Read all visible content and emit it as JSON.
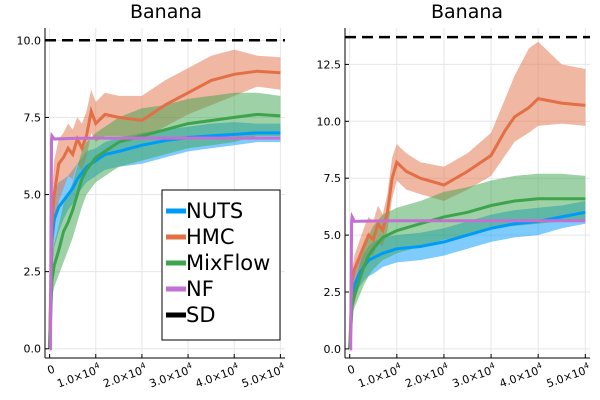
{
  "chart_data": [
    {
      "type": "line",
      "title": "Banana",
      "xlabel": "",
      "ylabel": "",
      "xlim": [
        -1000,
        51000
      ],
      "ylim": [
        -0.3,
        10.4
      ],
      "x_ticks": [
        0,
        10000,
        20000,
        30000,
        40000,
        50000
      ],
      "x_tick_labels": [
        {
          "main": "0",
          "exp": ""
        },
        {
          "main": "1.0×10",
          "exp": "4"
        },
        {
          "main": "2.0×10",
          "exp": "4"
        },
        {
          "main": "3.0×10",
          "exp": "4"
        },
        {
          "main": "4.0×10",
          "exp": "4"
        },
        {
          "main": "5.0×10",
          "exp": "4"
        }
      ],
      "y_ticks": [
        0,
        2.5,
        5,
        7.5,
        10
      ],
      "y_tick_labels": [
        "0.0",
        "2.5",
        "5.0",
        "7.5",
        "10.0"
      ],
      "grid": true,
      "legend_position": "bottom-right",
      "series": [
        {
          "name": "NUTS",
          "color": "#009af9",
          "style": "solid",
          "x": [
            0,
            500,
            1000,
            2000,
            3000,
            4000,
            5000,
            6000,
            7000,
            8000,
            10000,
            12000,
            15000,
            20000,
            25000,
            30000,
            35000,
            40000,
            45000,
            50000
          ],
          "mean": [
            0,
            3.5,
            4.2,
            4.6,
            4.8,
            5.0,
            5.2,
            5.5,
            5.7,
            5.9,
            6.1,
            6.3,
            6.4,
            6.6,
            6.75,
            6.85,
            6.9,
            6.95,
            7.0,
            7.0
          ],
          "lower": [
            0,
            2.6,
            3.3,
            3.8,
            4.2,
            4.5,
            4.7,
            5.0,
            5.2,
            5.4,
            5.6,
            5.8,
            5.9,
            6.0,
            6.2,
            6.4,
            6.5,
            6.6,
            6.7,
            6.7
          ],
          "upper": [
            0,
            4.4,
            5.1,
            5.4,
            5.5,
            5.6,
            5.8,
            6.0,
            6.2,
            6.4,
            6.5,
            6.7,
            6.85,
            7.0,
            7.1,
            7.2,
            7.3,
            7.35,
            7.3,
            7.3
          ]
        },
        {
          "name": "HMC",
          "color": "#e26f46",
          "style": "solid",
          "x": [
            0,
            500,
            1000,
            2000,
            3000,
            4000,
            5000,
            6000,
            7000,
            8000,
            9000,
            10000,
            12000,
            15000,
            20000,
            25000,
            30000,
            35000,
            40000,
            45000,
            50000
          ],
          "mean": [
            0,
            4.0,
            5.0,
            6.0,
            6.2,
            6.5,
            6.3,
            6.8,
            6.5,
            6.9,
            7.7,
            7.3,
            7.6,
            7.5,
            7.4,
            7.9,
            8.3,
            8.7,
            8.9,
            9.0,
            8.95
          ],
          "lower": [
            0,
            3.0,
            3.8,
            4.8,
            5.2,
            5.6,
            5.5,
            6.0,
            5.8,
            6.2,
            7.0,
            6.7,
            6.9,
            6.9,
            6.8,
            7.2,
            7.6,
            7.9,
            8.2,
            8.5,
            8.4
          ],
          "upper": [
            0,
            5.0,
            6.1,
            6.8,
            7.0,
            7.3,
            7.1,
            7.5,
            7.3,
            7.7,
            8.4,
            8.0,
            8.3,
            8.2,
            8.2,
            8.7,
            9.1,
            9.5,
            9.7,
            9.5,
            9.45
          ]
        },
        {
          "name": "MixFlow",
          "color": "#3da44d",
          "style": "solid",
          "x": [
            0,
            500,
            1000,
            2000,
            3000,
            4000,
            5000,
            6000,
            7000,
            8000,
            10000,
            12000,
            15000,
            20000,
            25000,
            30000,
            35000,
            40000,
            45000,
            50000
          ],
          "mean": [
            0,
            2.2,
            2.7,
            3.2,
            3.8,
            4.1,
            4.5,
            5.0,
            5.5,
            5.8,
            6.2,
            6.4,
            6.7,
            6.9,
            7.1,
            7.3,
            7.4,
            7.5,
            7.6,
            7.55
          ],
          "lower": [
            0,
            1.6,
            2.0,
            2.4,
            2.8,
            3.2,
            3.6,
            4.1,
            4.6,
            5.0,
            5.4,
            5.6,
            5.9,
            6.1,
            6.3,
            6.5,
            6.6,
            6.7,
            6.9,
            6.9
          ],
          "upper": [
            0,
            2.8,
            3.4,
            4.0,
            4.7,
            5.0,
            5.4,
            5.9,
            6.4,
            6.7,
            7.0,
            7.2,
            7.5,
            7.8,
            7.9,
            8.1,
            8.2,
            8.3,
            8.3,
            8.2
          ]
        },
        {
          "name": "NF",
          "color": "#c271d2",
          "style": "solid",
          "x": [
            0,
            200,
            400,
            500,
            1000,
            5000,
            10000,
            20000,
            30000,
            40000,
            50000
          ],
          "mean": [
            0,
            0,
            6.75,
            6.9,
            6.8,
            6.82,
            6.83,
            6.83,
            6.83,
            6.83,
            6.83
          ],
          "lower": [
            0,
            0,
            6.7,
            6.8,
            6.75,
            6.78,
            6.79,
            6.79,
            6.79,
            6.79,
            6.79
          ],
          "upper": [
            0,
            0,
            6.8,
            7.0,
            6.85,
            6.86,
            6.87,
            6.87,
            6.87,
            6.87,
            6.87
          ]
        },
        {
          "name": "SD",
          "color": "#000000",
          "style": "dashed",
          "x": [
            -1000,
            51000
          ],
          "mean": [
            10,
            10
          ]
        }
      ]
    },
    {
      "type": "line",
      "title": "Banana",
      "xlabel": "",
      "ylabel": "",
      "xlim": [
        -1000,
        51000
      ],
      "ylim": [
        -0.4,
        14.1
      ],
      "x_ticks": [
        0,
        10000,
        20000,
        30000,
        40000,
        50000
      ],
      "x_tick_labels": [
        {
          "main": "0",
          "exp": ""
        },
        {
          "main": "1.0×10",
          "exp": "4"
        },
        {
          "main": "2.0×10",
          "exp": "4"
        },
        {
          "main": "3.0×10",
          "exp": "4"
        },
        {
          "main": "4.0×10",
          "exp": "4"
        },
        {
          "main": "5.0×10",
          "exp": "4"
        }
      ],
      "y_ticks": [
        0,
        2.5,
        5,
        7.5,
        10,
        12.5
      ],
      "y_tick_labels": [
        "0.0",
        "2.5",
        "5.0",
        "7.5",
        "10.0",
        "12.5"
      ],
      "grid": true,
      "series": [
        {
          "name": "NUTS",
          "color": "#009af9",
          "style": "solid",
          "x": [
            0,
            500,
            1000,
            2000,
            3000,
            4000,
            5000,
            7000,
            10000,
            15000,
            20000,
            25000,
            30000,
            35000,
            40000,
            45000,
            50000
          ],
          "mean": [
            0,
            2.2,
            2.8,
            3.3,
            3.6,
            3.9,
            4.0,
            4.2,
            4.4,
            4.5,
            4.7,
            5.0,
            5.3,
            5.5,
            5.6,
            5.8,
            6.0
          ],
          "lower": [
            0,
            1.8,
            2.3,
            2.7,
            3.0,
            3.2,
            3.3,
            3.6,
            3.8,
            3.9,
            4.1,
            4.4,
            4.7,
            4.9,
            5.0,
            5.3,
            5.5
          ],
          "upper": [
            0,
            2.6,
            3.3,
            3.9,
            4.2,
            4.5,
            4.7,
            4.9,
            5.0,
            5.1,
            5.3,
            5.6,
            5.9,
            6.1,
            6.2,
            6.3,
            6.5
          ]
        },
        {
          "name": "HMC",
          "color": "#e26f46",
          "style": "solid",
          "x": [
            0,
            500,
            1000,
            2000,
            3000,
            4000,
            5000,
            6000,
            7000,
            8000,
            9000,
            10000,
            12000,
            15000,
            20000,
            25000,
            30000,
            33000,
            35000,
            38000,
            40000,
            45000,
            50000
          ],
          "mean": [
            0,
            3.0,
            3.5,
            4.0,
            4.5,
            5.0,
            4.8,
            5.5,
            5.2,
            6.0,
            7.5,
            8.2,
            7.8,
            7.5,
            7.2,
            7.8,
            8.5,
            9.6,
            10.2,
            10.6,
            11.0,
            10.8,
            10.7
          ],
          "lower": [
            0,
            2.5,
            2.9,
            3.3,
            3.7,
            4.2,
            4.1,
            4.7,
            4.5,
            5.2,
            6.6,
            7.4,
            7.0,
            6.8,
            6.5,
            7.0,
            7.6,
            8.5,
            9.1,
            9.5,
            9.8,
            9.9,
            9.8
          ],
          "upper": [
            0,
            3.5,
            4.1,
            4.7,
            5.3,
            5.8,
            5.6,
            6.3,
            5.9,
            6.8,
            8.4,
            9.0,
            8.6,
            8.2,
            8.0,
            8.6,
            9.5,
            11.0,
            12.0,
            13.2,
            13.5,
            12.5,
            12.3
          ]
        },
        {
          "name": "MixFlow",
          "color": "#3da44d",
          "style": "solid",
          "x": [
            0,
            500,
            1000,
            2000,
            3000,
            4000,
            5000,
            7000,
            10000,
            15000,
            20000,
            25000,
            30000,
            35000,
            40000,
            45000,
            50000
          ],
          "mean": [
            0,
            1.9,
            2.3,
            3.0,
            3.6,
            4.1,
            4.4,
            4.9,
            5.2,
            5.5,
            5.8,
            6.0,
            6.3,
            6.5,
            6.6,
            6.6,
            6.6
          ],
          "lower": [
            0,
            1.5,
            1.8,
            2.3,
            2.8,
            3.2,
            3.5,
            3.9,
            4.2,
            4.5,
            4.8,
            5.0,
            5.3,
            5.4,
            5.5,
            5.6,
            5.6
          ],
          "upper": [
            0,
            2.3,
            2.8,
            3.6,
            4.4,
            5.0,
            5.4,
            5.9,
            6.2,
            6.5,
            6.9,
            7.1,
            7.4,
            7.6,
            7.7,
            7.7,
            7.6
          ]
        },
        {
          "name": "NF",
          "color": "#c271d2",
          "style": "solid",
          "x": [
            0,
            200,
            400,
            500,
            1000,
            5000,
            10000,
            20000,
            30000,
            40000,
            50000
          ],
          "mean": [
            0,
            0,
            5.6,
            5.8,
            5.6,
            5.62,
            5.63,
            5.63,
            5.63,
            5.63,
            5.63
          ],
          "lower": [
            0,
            0,
            5.55,
            5.7,
            5.55,
            5.58,
            5.59,
            5.59,
            5.59,
            5.59,
            5.59
          ],
          "upper": [
            0,
            0,
            5.65,
            5.9,
            5.65,
            5.66,
            5.67,
            5.67,
            5.67,
            5.67,
            5.67
          ]
        },
        {
          "name": "SD",
          "color": "#000000",
          "style": "dashed",
          "x": [
            -1000,
            51000
          ],
          "mean": [
            13.7,
            13.7
          ]
        }
      ]
    }
  ]
}
